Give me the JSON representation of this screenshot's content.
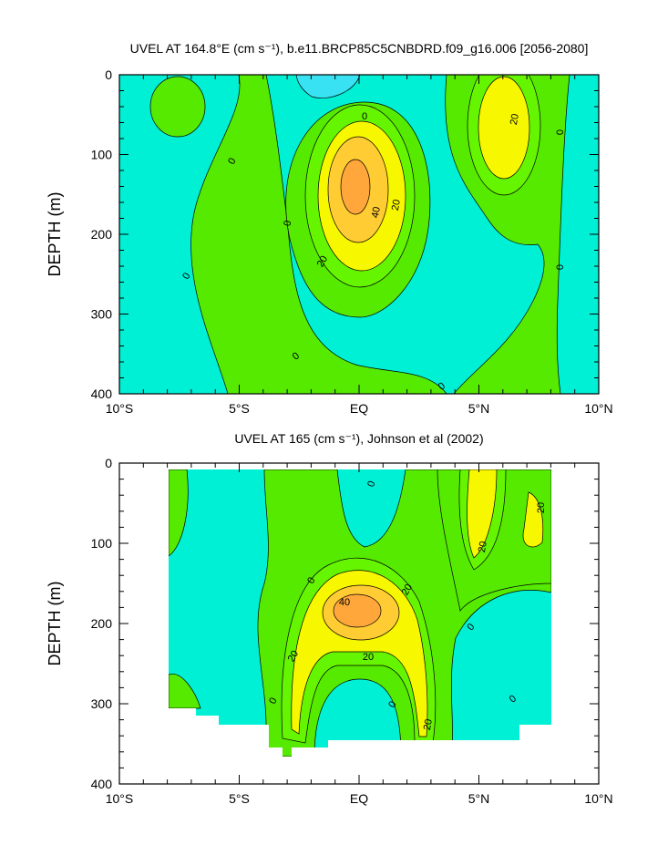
{
  "chart_data": [
    {
      "type": "contour",
      "title": "UVEL AT 164.8°E (cm s⁻¹), b.e11.BRCP85C5CNBDRD.f09_g16.006 [2056-2080]",
      "ylabel": "DEPTH (m)",
      "xlim": [
        -10,
        10
      ],
      "ylim": [
        400,
        0
      ],
      "xticks": [
        {
          "value": -10,
          "label": "10°S"
        },
        {
          "value": -5,
          "label": "5°S"
        },
        {
          "value": 0,
          "label": "EQ"
        },
        {
          "value": 5,
          "label": "5°N"
        },
        {
          "value": 10,
          "label": "10°N"
        }
      ],
      "yticks": [
        0,
        100,
        200,
        300,
        400
      ],
      "levels": [
        -10,
        0,
        10,
        20,
        30,
        40
      ],
      "fill_colors": [
        "#38e2f2",
        "#00f0d6",
        "#55ea00",
        "#66f500",
        "#f7f700",
        "#ffcc33",
        "#ffa73a"
      ],
      "contour_labels": [
        0,
        0,
        0,
        0,
        0,
        0,
        0,
        0,
        20,
        20,
        40,
        20
      ]
    },
    {
      "type": "contour",
      "title": "UVEL AT 165 (cm s⁻¹), Johnson et al (2002)",
      "ylabel": "DEPTH (m)",
      "xlim": [
        -10,
        10
      ],
      "ylim": [
        400,
        0
      ],
      "xticks": [
        {
          "value": -10,
          "label": "10°S"
        },
        {
          "value": -5,
          "label": "5°S"
        },
        {
          "value": 0,
          "label": "EQ"
        },
        {
          "value": 5,
          "label": "5°N"
        },
        {
          "value": 10,
          "label": "10°N"
        }
      ],
      "yticks": [
        0,
        100,
        200,
        300,
        400
      ],
      "levels": [
        -10,
        0,
        10,
        20,
        30,
        40
      ],
      "fill_colors": [
        "#38e2f2",
        "#00f0d6",
        "#55ea00",
        "#66f500",
        "#f7f700",
        "#ffcc33",
        "#ffa73a"
      ],
      "contour_labels": [
        0,
        0,
        0,
        0,
        0,
        0,
        20,
        40,
        20,
        20,
        20,
        20,
        20
      ]
    }
  ]
}
